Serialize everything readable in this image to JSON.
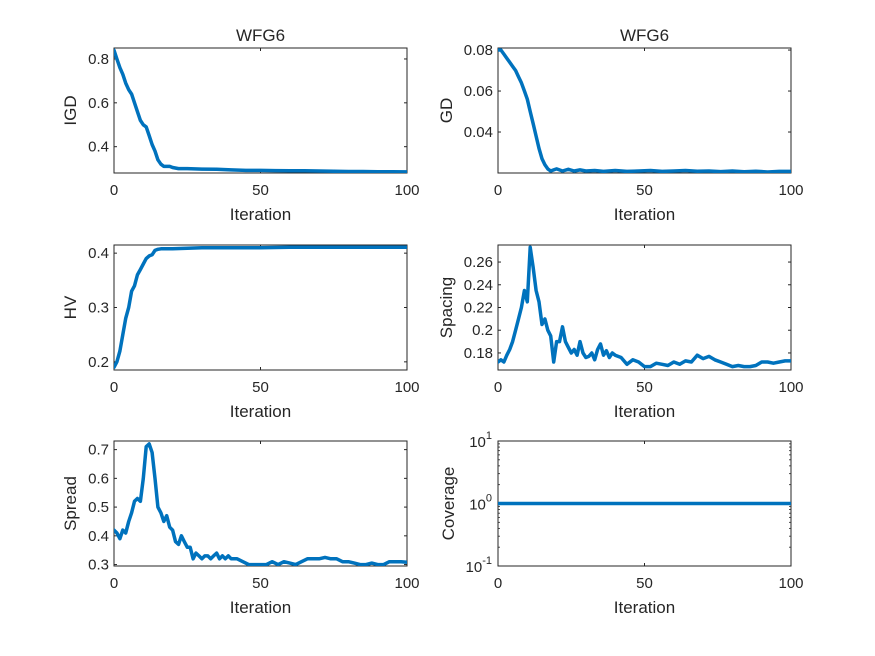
{
  "colors": {
    "line": "#0072BD",
    "axis": "#262626",
    "background": "#ffffff"
  },
  "chart_data": [
    {
      "type": "line",
      "title": "WFG6",
      "xlabel": "Iteration",
      "ylabel": "IGD",
      "xlim": [
        0,
        100
      ],
      "ylim": [
        0.28,
        0.85
      ],
      "yscale": "linear",
      "xticks": [
        0,
        50,
        100
      ],
      "yticks": [
        0.4,
        0.6,
        0.8
      ],
      "yticklabels": [
        "0.4",
        "0.6",
        "0.8"
      ],
      "grid": false,
      "x": [
        0,
        1,
        2,
        3,
        4,
        5,
        6,
        7,
        8,
        9,
        10,
        11,
        12,
        13,
        14,
        15,
        16,
        17,
        18,
        19,
        20,
        22,
        25,
        30,
        35,
        40,
        45,
        50,
        55,
        60,
        65,
        70,
        75,
        80,
        85,
        90,
        95,
        100
      ],
      "y": [
        0.84,
        0.8,
        0.76,
        0.73,
        0.69,
        0.66,
        0.64,
        0.6,
        0.56,
        0.52,
        0.5,
        0.49,
        0.45,
        0.41,
        0.38,
        0.34,
        0.32,
        0.31,
        0.31,
        0.31,
        0.305,
        0.3,
        0.3,
        0.298,
        0.297,
        0.294,
        0.292,
        0.292,
        0.291,
        0.29,
        0.29,
        0.289,
        0.288,
        0.287,
        0.287,
        0.286,
        0.286,
        0.285
      ]
    },
    {
      "type": "line",
      "title": "WFG6",
      "xlabel": "Iteration",
      "ylabel": "GD",
      "xlim": [
        0,
        100
      ],
      "ylim": [
        0.02,
        0.081
      ],
      "yscale": "linear",
      "xticks": [
        0,
        50,
        100
      ],
      "yticks": [
        0.04,
        0.06,
        0.08
      ],
      "yticklabels": [
        "0.04",
        "0.06",
        "0.08"
      ],
      "grid": false,
      "x": [
        0,
        1,
        2,
        3,
        4,
        5,
        6,
        7,
        8,
        9,
        10,
        11,
        12,
        13,
        14,
        15,
        16,
        17,
        18,
        19,
        20,
        22,
        24,
        26,
        28,
        30,
        33,
        36,
        40,
        44,
        48,
        52,
        56,
        60,
        64,
        68,
        72,
        76,
        80,
        84,
        88,
        92,
        96,
        100
      ],
      "y": [
        0.08,
        0.08,
        0.078,
        0.076,
        0.074,
        0.072,
        0.07,
        0.067,
        0.064,
        0.06,
        0.056,
        0.05,
        0.044,
        0.038,
        0.032,
        0.027,
        0.024,
        0.022,
        0.021,
        0.0215,
        0.022,
        0.021,
        0.0218,
        0.021,
        0.0215,
        0.021,
        0.0212,
        0.0208,
        0.0212,
        0.0208,
        0.021,
        0.0212,
        0.0208,
        0.021,
        0.0212,
        0.0209,
        0.021,
        0.0207,
        0.021,
        0.0206,
        0.0209,
        0.0205,
        0.0208,
        0.0208
      ]
    },
    {
      "type": "line",
      "title": "",
      "xlabel": "Iteration",
      "ylabel": "HV",
      "xlim": [
        0,
        100
      ],
      "ylim": [
        0.185,
        0.415
      ],
      "yscale": "linear",
      "xticks": [
        0,
        50,
        100
      ],
      "yticks": [
        0.2,
        0.3,
        0.4
      ],
      "yticklabels": [
        "0.2",
        "0.3",
        "0.4"
      ],
      "grid": false,
      "x": [
        0,
        1,
        2,
        3,
        4,
        5,
        6,
        7,
        8,
        9,
        10,
        11,
        12,
        13,
        14,
        15,
        16,
        18,
        20,
        25,
        30,
        40,
        50,
        60,
        70,
        80,
        90,
        100
      ],
      "y": [
        0.19,
        0.2,
        0.22,
        0.25,
        0.28,
        0.3,
        0.33,
        0.34,
        0.36,
        0.37,
        0.38,
        0.39,
        0.395,
        0.397,
        0.405,
        0.407,
        0.408,
        0.408,
        0.408,
        0.409,
        0.41,
        0.41,
        0.41,
        0.411,
        0.411,
        0.411,
        0.411,
        0.411
      ]
    },
    {
      "type": "line",
      "title": "",
      "xlabel": "Iteration",
      "ylabel": "Spacing",
      "xlim": [
        0,
        100
      ],
      "ylim": [
        0.165,
        0.275
      ],
      "yscale": "linear",
      "xticks": [
        0,
        50,
        100
      ],
      "yticks": [
        0.18,
        0.2,
        0.22,
        0.24,
        0.26
      ],
      "yticklabels": [
        "0.18",
        "0.2",
        "0.22",
        "0.24",
        "0.26"
      ],
      "grid": false,
      "x": [
        0,
        1,
        2,
        3,
        4,
        5,
        6,
        7,
        8,
        9,
        10,
        11,
        12,
        13,
        14,
        15,
        16,
        17,
        18,
        19,
        20,
        21,
        22,
        23,
        24,
        25,
        26,
        27,
        28,
        29,
        30,
        31,
        32,
        33,
        34,
        35,
        36,
        37,
        38,
        39,
        40,
        42,
        44,
        46,
        48,
        50,
        52,
        54,
        56,
        58,
        60,
        62,
        64,
        66,
        68,
        70,
        72,
        74,
        76,
        78,
        80,
        82,
        84,
        86,
        88,
        90,
        92,
        94,
        96,
        98,
        100
      ],
      "y": [
        0.172,
        0.174,
        0.172,
        0.178,
        0.183,
        0.19,
        0.2,
        0.21,
        0.22,
        0.235,
        0.225,
        0.273,
        0.255,
        0.235,
        0.225,
        0.205,
        0.21,
        0.2,
        0.195,
        0.172,
        0.19,
        0.19,
        0.203,
        0.19,
        0.185,
        0.18,
        0.183,
        0.178,
        0.19,
        0.18,
        0.176,
        0.177,
        0.18,
        0.174,
        0.183,
        0.188,
        0.178,
        0.182,
        0.176,
        0.18,
        0.178,
        0.176,
        0.17,
        0.174,
        0.172,
        0.168,
        0.168,
        0.171,
        0.17,
        0.169,
        0.172,
        0.17,
        0.173,
        0.172,
        0.178,
        0.175,
        0.177,
        0.174,
        0.172,
        0.17,
        0.168,
        0.169,
        0.168,
        0.168,
        0.169,
        0.172,
        0.172,
        0.171,
        0.172,
        0.173,
        0.173
      ]
    },
    {
      "type": "line",
      "title": "",
      "xlabel": "Iteration",
      "ylabel": "Spread",
      "xlim": [
        0,
        100
      ],
      "ylim": [
        0.295,
        0.73
      ],
      "yscale": "linear",
      "xticks": [
        0,
        50,
        100
      ],
      "yticks": [
        0.3,
        0.4,
        0.5,
        0.6,
        0.7
      ],
      "yticklabels": [
        "0.3",
        "0.4",
        "0.5",
        "0.6",
        "0.7"
      ],
      "grid": false,
      "x": [
        0,
        1,
        2,
        3,
        4,
        5,
        6,
        7,
        8,
        9,
        10,
        11,
        12,
        13,
        14,
        15,
        16,
        17,
        18,
        19,
        20,
        21,
        22,
        23,
        24,
        25,
        26,
        27,
        28,
        29,
        30,
        31,
        32,
        33,
        34,
        35,
        36,
        37,
        38,
        39,
        40,
        42,
        44,
        46,
        48,
        50,
        52,
        54,
        56,
        58,
        60,
        62,
        64,
        66,
        68,
        70,
        72,
        74,
        76,
        78,
        80,
        82,
        84,
        86,
        88,
        90,
        92,
        94,
        96,
        98,
        100
      ],
      "y": [
        0.42,
        0.41,
        0.39,
        0.42,
        0.41,
        0.45,
        0.48,
        0.52,
        0.53,
        0.52,
        0.6,
        0.71,
        0.72,
        0.69,
        0.6,
        0.5,
        0.48,
        0.45,
        0.47,
        0.43,
        0.42,
        0.38,
        0.37,
        0.4,
        0.38,
        0.36,
        0.36,
        0.32,
        0.34,
        0.33,
        0.32,
        0.33,
        0.33,
        0.32,
        0.33,
        0.34,
        0.32,
        0.33,
        0.32,
        0.33,
        0.32,
        0.32,
        0.31,
        0.3,
        0.3,
        0.3,
        0.3,
        0.31,
        0.3,
        0.31,
        0.305,
        0.3,
        0.31,
        0.32,
        0.32,
        0.32,
        0.325,
        0.32,
        0.32,
        0.31,
        0.31,
        0.305,
        0.3,
        0.3,
        0.305,
        0.3,
        0.3,
        0.31,
        0.31,
        0.31,
        0.308
      ]
    },
    {
      "type": "line",
      "title": "",
      "xlabel": "Iteration",
      "ylabel": "Coverage",
      "xlim": [
        0,
        100
      ],
      "ylim": [
        0.1,
        10
      ],
      "yscale": "log",
      "xticks": [
        0,
        50,
        100
      ],
      "yticks": [
        0.1,
        1,
        10
      ],
      "yticklabels": [
        {
          "base": "10",
          "exp": "-1"
        },
        {
          "base": "10",
          "exp": "0"
        },
        {
          "base": "10",
          "exp": "1"
        }
      ],
      "grid": false,
      "x": [
        0,
        100
      ],
      "y": [
        1,
        1
      ]
    }
  ]
}
